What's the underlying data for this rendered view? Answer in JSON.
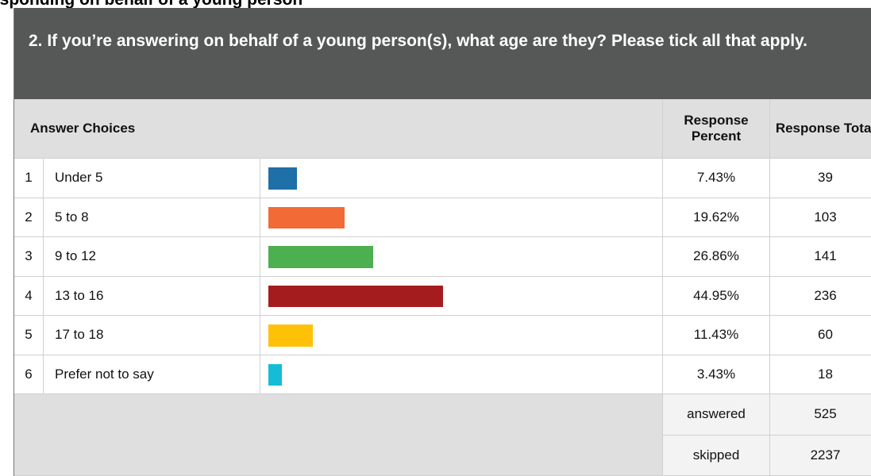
{
  "page_heading": "esponding on behalf of a young person",
  "question": "2. If you’re answering on behalf of a young person(s), what age are they? Please tick all that apply.",
  "table": {
    "headers": {
      "choices": "Answer Choices",
      "percent": "Response Percent",
      "total": "Response Total"
    },
    "rows": [
      {
        "index": 1,
        "label": "Under 5",
        "percent": {
          "value": 7.43,
          "label": "7.43%"
        },
        "total": 39,
        "color": "#1f6fa8"
      },
      {
        "index": 2,
        "label": "5 to 8",
        "percent": {
          "value": 19.62,
          "label": "19.62%"
        },
        "total": 103,
        "color": "#f26a35"
      },
      {
        "index": 3,
        "label": "9 to 12",
        "percent": {
          "value": 26.86,
          "label": "26.86%"
        },
        "total": 141,
        "color": "#4caf50"
      },
      {
        "index": 4,
        "label": "13 to 16",
        "percent": {
          "value": 44.95,
          "label": "44.95%"
        },
        "total": 236,
        "color": "#a51c1f"
      },
      {
        "index": 5,
        "label": "17 to 18",
        "percent": {
          "value": 11.43,
          "label": "11.43%"
        },
        "total": 60,
        "color": "#ffc107"
      },
      {
        "index": 6,
        "label": "Prefer not to say",
        "percent": {
          "value": 3.43,
          "label": "3.43%"
        },
        "total": 18,
        "color": "#14bcd6"
      }
    ],
    "summary": [
      {
        "label": "answered",
        "value": 525
      },
      {
        "label": "skipped",
        "value": 2237
      }
    ]
  }
}
